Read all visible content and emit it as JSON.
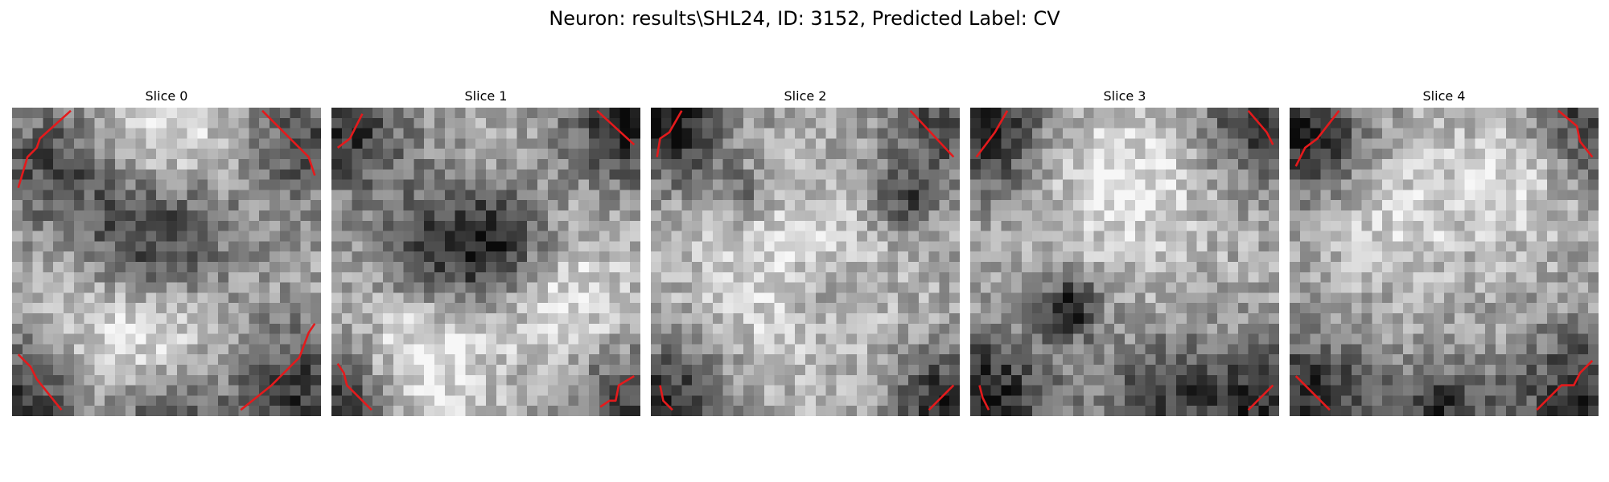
{
  "figure": {
    "title": "Neuron: results\\SHL24, ID: 3152, Predicted Label: CV"
  },
  "slices": [
    {
      "title": "Slice 0",
      "seed": 11,
      "dark_blobs": [
        [
          0.46,
          0.42,
          0.18,
          0.55
        ],
        [
          0.12,
          0.18,
          0.14,
          0.35
        ],
        [
          0.95,
          0.12,
          0.14,
          0.35
        ],
        [
          0.05,
          0.95,
          0.16,
          0.45
        ],
        [
          0.95,
          0.95,
          0.18,
          0.45
        ],
        [
          0.5,
          1.0,
          0.12,
          0.4
        ]
      ],
      "light_blobs": [
        [
          0.5,
          0.12,
          0.16,
          0.3
        ],
        [
          0.4,
          0.72,
          0.2,
          0.35
        ]
      ]
    },
    {
      "title": "Slice 1",
      "seed": 23,
      "dark_blobs": [
        [
          0.35,
          0.45,
          0.15,
          0.35
        ],
        [
          0.55,
          0.45,
          0.12,
          0.4
        ],
        [
          0.05,
          0.08,
          0.14,
          0.45
        ],
        [
          0.95,
          0.05,
          0.14,
          0.5
        ],
        [
          0.05,
          0.95,
          0.14,
          0.45
        ],
        [
          0.95,
          0.95,
          0.12,
          0.4
        ]
      ],
      "light_blobs": [
        [
          0.28,
          0.82,
          0.15,
          0.35
        ],
        [
          0.75,
          0.62,
          0.15,
          0.25
        ]
      ]
    },
    {
      "title": "Slice 2",
      "seed": 37,
      "dark_blobs": [
        [
          0.05,
          0.05,
          0.14,
          0.55
        ],
        [
          0.95,
          0.05,
          0.14,
          0.4
        ],
        [
          0.05,
          0.95,
          0.14,
          0.45
        ],
        [
          0.95,
          0.95,
          0.12,
          0.5
        ],
        [
          0.3,
          0.28,
          0.06,
          0.3
        ],
        [
          0.82,
          0.3,
          0.07,
          0.35
        ],
        [
          0.55,
          0.6,
          0.1,
          0.2
        ]
      ],
      "light_blobs": [
        [
          0.45,
          0.55,
          0.2,
          0.25
        ]
      ]
    },
    {
      "title": "Slice 3",
      "seed": 53,
      "dark_blobs": [
        [
          0.05,
          0.08,
          0.14,
          0.5
        ],
        [
          0.95,
          0.05,
          0.14,
          0.45
        ],
        [
          0.05,
          0.95,
          0.16,
          0.55
        ],
        [
          0.95,
          0.95,
          0.14,
          0.45
        ],
        [
          0.32,
          0.65,
          0.07,
          0.55
        ],
        [
          0.62,
          0.95,
          0.14,
          0.4
        ]
      ],
      "light_blobs": [
        [
          0.5,
          0.25,
          0.18,
          0.25
        ]
      ]
    },
    {
      "title": "Slice 4",
      "seed": 71,
      "dark_blobs": [
        [
          0.05,
          0.1,
          0.14,
          0.5
        ],
        [
          0.95,
          0.05,
          0.16,
          0.45
        ],
        [
          0.05,
          0.95,
          0.16,
          0.5
        ],
        [
          0.95,
          0.95,
          0.16,
          0.5
        ],
        [
          0.5,
          1.0,
          0.12,
          0.45
        ]
      ],
      "light_blobs": [
        [
          0.75,
          0.2,
          0.14,
          0.3
        ],
        [
          0.35,
          0.35,
          0.15,
          0.2
        ]
      ]
    }
  ],
  "overlay": {
    "contour_color": "#e41a1c",
    "grid_cells": 30
  }
}
